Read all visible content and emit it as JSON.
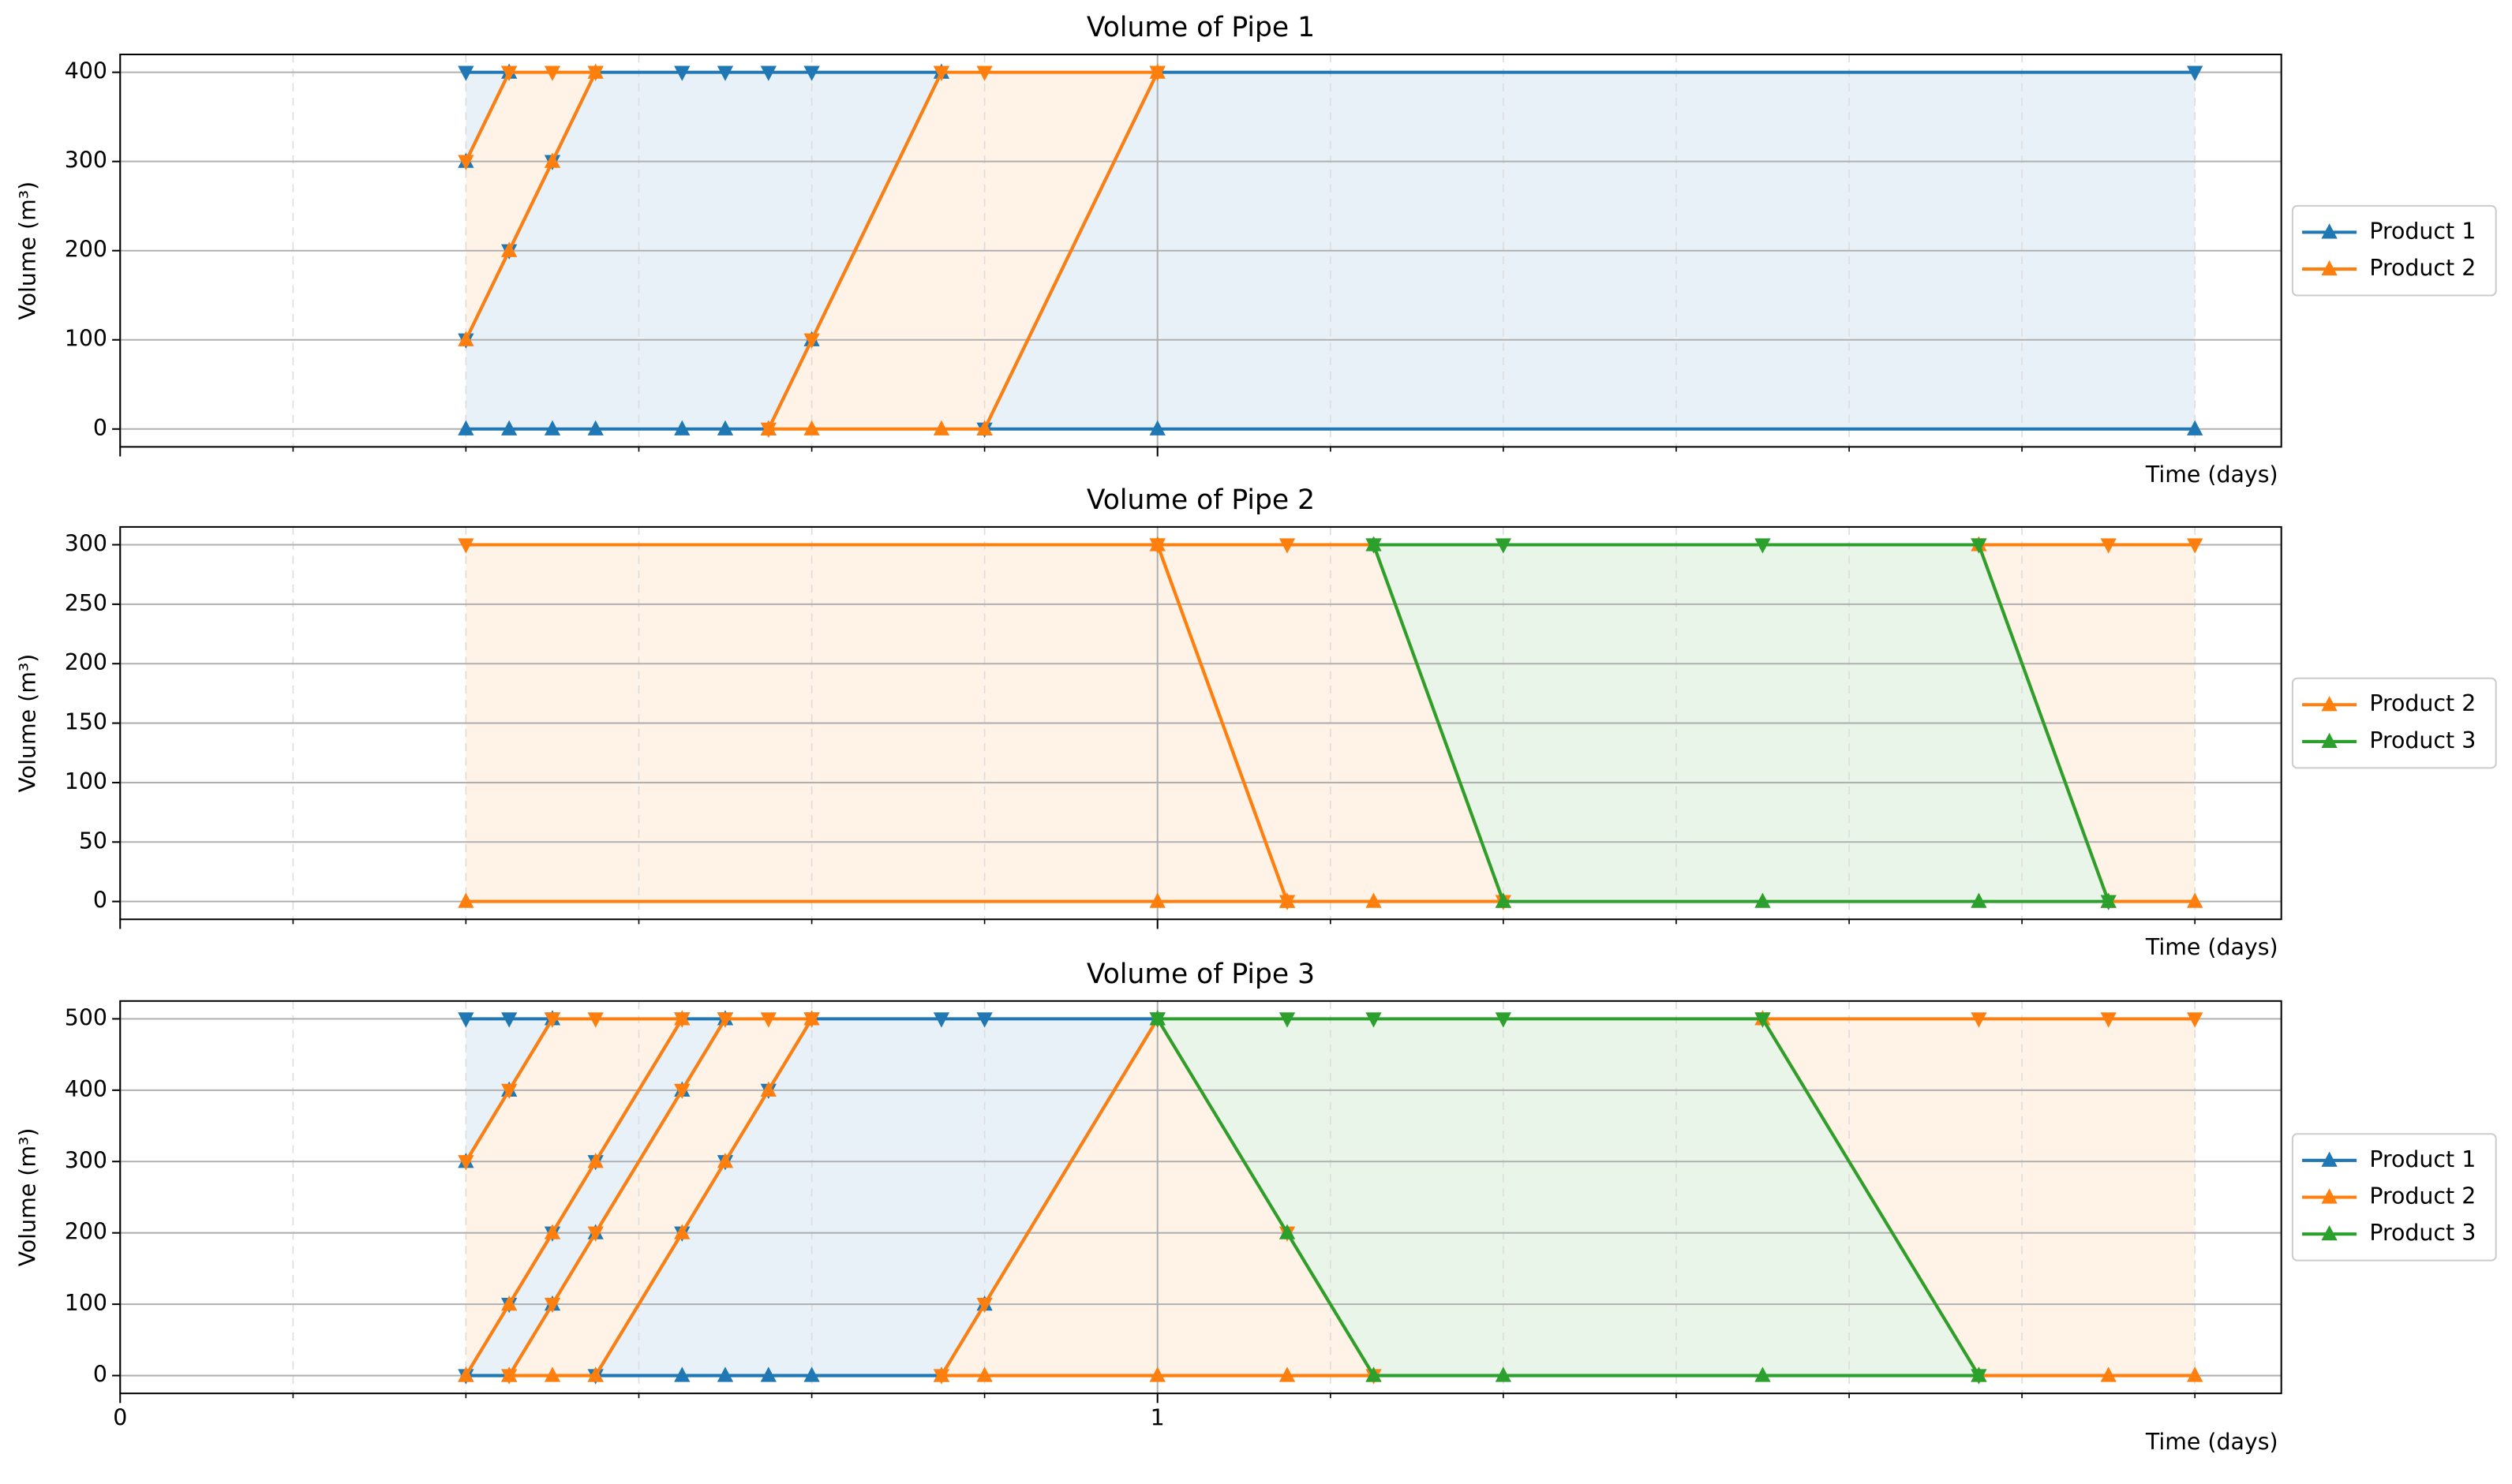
{
  "chart_data": [
    {
      "type": "line",
      "title": "Volume of Pipe 1",
      "ylabel": "Volume (m³)",
      "xlabel": "Time (days)",
      "ylim": [
        -20,
        420
      ],
      "yticks": [
        0,
        100,
        200,
        300,
        400
      ],
      "grid": true,
      "legend": "right",
      "series": [
        {
          "name": "Product 1",
          "color": "#1f77b4",
          "bands": [
            {
              "x": [
                0.3333,
                0.375
              ],
              "lower": [
                300,
                400
              ],
              "upper": [
                400,
                400
              ]
            },
            {
              "x": [
                0.3333,
                0.375,
                0.4167,
                0.4583,
                0.5417,
                0.5833,
                0.625,
                0.6667,
                0.7917
              ],
              "lower": [
                0,
                0,
                0,
                0,
                0,
                0,
                0,
                100,
                400
              ],
              "upper": [
                100,
                200,
                300,
                400,
                400,
                400,
                400,
                400,
                400
              ]
            },
            {
              "x": [
                0.8333,
                1,
                2
              ],
              "lower": [
                0,
                0,
                0
              ],
              "upper": [
                0,
                400,
                400
              ]
            }
          ]
        },
        {
          "name": "Product 2",
          "color": "#ff7f0e",
          "bands": [
            {
              "x": [
                0.3333,
                0.375,
                0.4167,
                0.4583
              ],
              "lower": [
                100,
                200,
                300,
                400
              ],
              "upper": [
                300,
                400,
                400,
                400
              ]
            },
            {
              "x": [
                0.625,
                0.6667,
                0.7917,
                0.8333,
                1
              ],
              "lower": [
                0,
                0,
                0,
                0,
                400
              ],
              "upper": [
                0,
                100,
                400,
                400,
                400
              ]
            }
          ]
        }
      ]
    },
    {
      "type": "line",
      "title": "Volume of Pipe 2",
      "ylabel": "Volume (m³)",
      "xlabel": "Time (days)",
      "ylim": [
        -15,
        315
      ],
      "yticks": [
        0,
        50,
        100,
        150,
        200,
        250,
        300
      ],
      "grid": true,
      "legend": "right",
      "series": [
        {
          "name": "Product 2",
          "color": "#ff7f0e",
          "bands": [
            {
              "x": [
                0.3333,
                1,
                1.125
              ],
              "lower": [
                0,
                0,
                0
              ],
              "upper": [
                300,
                300,
                0
              ]
            },
            {
              "x": [
                1,
                1.125,
                1.2083,
                1.3333
              ],
              "lower": [
                300,
                0,
                0,
                0
              ],
              "upper": [
                300,
                300,
                300,
                0
              ]
            },
            {
              "x": [
                1.7917,
                1.9167,
                2
              ],
              "lower": [
                300,
                0,
                0
              ],
              "upper": [
                300,
                300,
                300
              ]
            }
          ]
        },
        {
          "name": "Product 3",
          "color": "#2ca02c",
          "bands": [
            {
              "x": [
                1.2083,
                1.3333,
                1.5833,
                1.7917,
                1.9167
              ],
              "lower": [
                300,
                0,
                0,
                0,
                0
              ],
              "upper": [
                300,
                300,
                300,
                300,
                0
              ]
            }
          ]
        }
      ]
    },
    {
      "type": "line",
      "title": "Volume of Pipe 3",
      "ylabel": "Volume (m³)",
      "xlabel": "Time (days)",
      "ylim": [
        -25,
        525
      ],
      "yticks": [
        0,
        100,
        200,
        300,
        400,
        500
      ],
      "grid": true,
      "legend": "right",
      "xlim": [
        0,
        2.0833
      ],
      "xticks": [
        0,
        1
      ],
      "xminor": [
        0.1667,
        0.3333,
        0.5,
        0.6667,
        0.8333,
        1.1667,
        1.3333,
        1.5,
        1.6667,
        1.8333,
        2
      ],
      "series": [
        {
          "name": "Product 1",
          "color": "#1f77b4",
          "bands": [
            {
              "x": [
                0.3333,
                0.375,
                0.4167
              ],
              "lower": [
                300,
                400,
                500
              ],
              "upper": [
                500,
                500,
                500
              ]
            },
            {
              "x": [
                0.3333,
                0.375,
                0.4167,
                0.4583,
                0.5417,
                0.5833
              ],
              "lower": [
                0,
                0,
                100,
                200,
                400,
                500
              ],
              "upper": [
                0,
                100,
                200,
                300,
                500,
                500
              ]
            },
            {
              "x": [
                0.4583,
                0.5417,
                0.5833,
                0.625,
                0.6667,
                0.7917,
                0.8333,
                1
              ],
              "lower": [
                0,
                0,
                0,
                0,
                0,
                0,
                100,
                500
              ],
              "upper": [
                0,
                200,
                300,
                400,
                500,
                500,
                500,
                500
              ]
            }
          ]
        },
        {
          "name": "Product 2",
          "color": "#ff7f0e",
          "bands": [
            {
              "x": [
                0.3333,
                0.375,
                0.4167,
                0.4583,
                0.5417
              ],
              "lower": [
                0,
                100,
                200,
                300,
                500
              ],
              "upper": [
                300,
                400,
                500,
                500,
                500
              ]
            },
            {
              "x": [
                0.375,
                0.4167,
                0.4583,
                0.5417,
                0.5833,
                0.625,
                0.6667
              ],
              "lower": [
                0,
                0,
                0,
                200,
                300,
                400,
                500
              ],
              "upper": [
                0,
                100,
                200,
                400,
                500,
                500,
                500
              ]
            },
            {
              "x": [
                0.7917,
                0.8333,
                1,
                1.125,
                1.2083
              ],
              "lower": [
                0,
                0,
                0,
                0,
                0
              ],
              "upper": [
                0,
                100,
                500,
                200,
                0
              ]
            },
            {
              "x": [
                1.5833,
                1.7917,
                1.9167,
                2
              ],
              "lower": [
                500,
                0,
                0,
                0
              ],
              "upper": [
                500,
                500,
                500,
                500
              ]
            }
          ]
        },
        {
          "name": "Product 3",
          "color": "#2ca02c",
          "bands": [
            {
              "x": [
                1,
                1.125,
                1.2083,
                1.3333,
                1.5833,
                1.7917
              ],
              "lower": [
                500,
                200,
                0,
                0,
                0,
                0
              ],
              "upper": [
                500,
                500,
                500,
                500,
                500,
                0
              ]
            }
          ]
        }
      ]
    }
  ]
}
